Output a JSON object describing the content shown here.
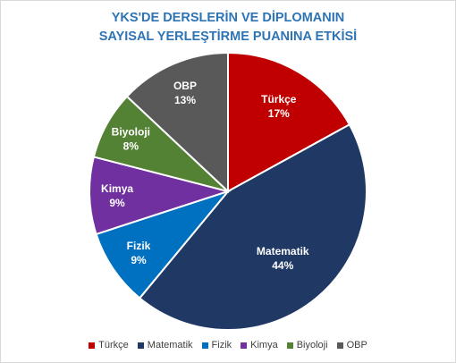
{
  "chart_data": {
    "type": "pie",
    "title_lines": [
      "YKS'DE DERSLERİN VE DİPLOMANIN",
      "SAYISAL YERLEŞTİRME PUANINA ETKİSİ"
    ],
    "slices": [
      {
        "name": "Türkçe",
        "value": 17,
        "label": "17%",
        "color": "#c00000"
      },
      {
        "name": "Matematik",
        "value": 44,
        "label": "44%",
        "color": "#203864"
      },
      {
        "name": "Fizik",
        "value": 9,
        "label": "9%",
        "color": "#0070c0"
      },
      {
        "name": "Kimya",
        "value": 9,
        "label": "9%",
        "color": "#7030a0"
      },
      {
        "name": "Biyoloji",
        "value": 8,
        "label": "8%",
        "color": "#548235"
      },
      {
        "name": "OBP",
        "value": 13,
        "label": "13%",
        "color": "#595959"
      }
    ],
    "legend_position": "bottom"
  }
}
